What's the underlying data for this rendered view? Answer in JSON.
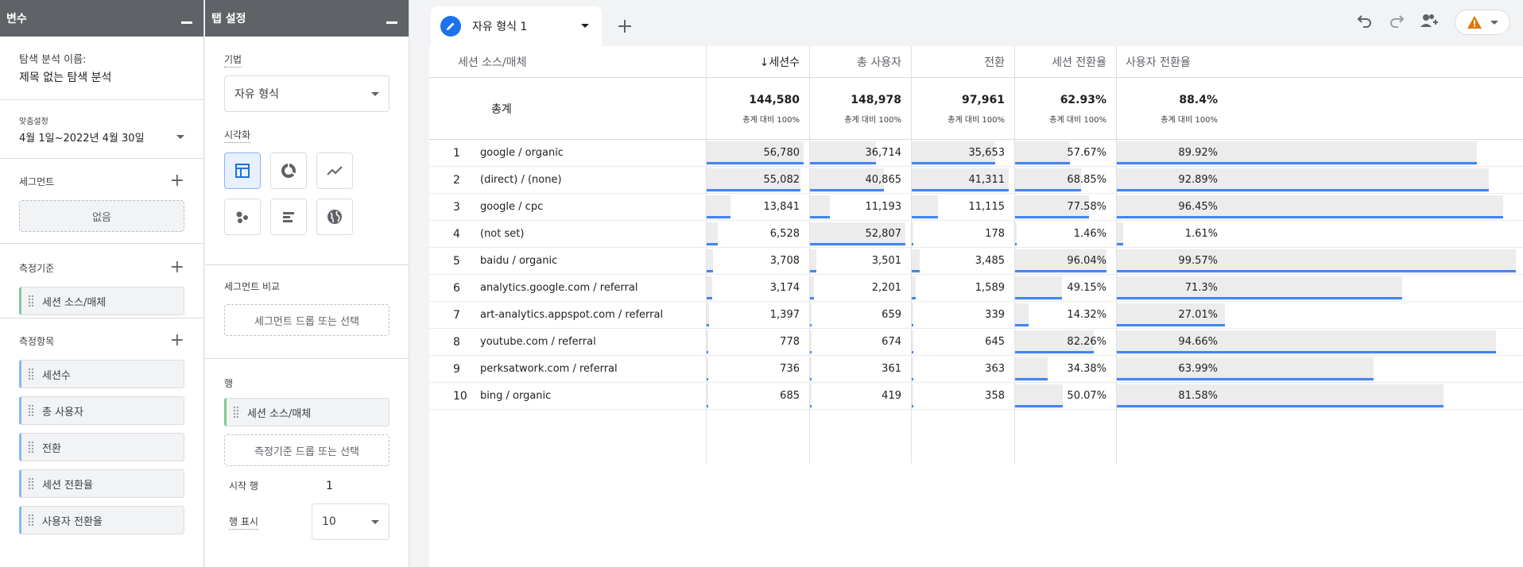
{
  "variables_panel": {
    "title": "변수",
    "exploration_name_label": "탐색 분석 이름:",
    "exploration_name": "제목 없는 탐색 분석",
    "date_label": "맞춤설정",
    "date_range": "4월 1일~2022년 4월 30일",
    "segments_label": "세그먼트",
    "segments_empty": "없음",
    "dimensions_label": "측정기준",
    "dimensions": [
      "세션 소스/매체"
    ],
    "metrics_label": "측정항목",
    "metrics": [
      "세션수",
      "총 사용자",
      "전환",
      "세션 전환율",
      "사용자 전환율"
    ]
  },
  "tab_settings_panel": {
    "title": "탭 설정",
    "technique_label": "기법",
    "technique_value": "자유 형식",
    "visualization_label": "시각화",
    "segment_compare_label": "세그먼트 비교",
    "segment_drop": "세그먼트 드롭 또는 선택",
    "rows_label": "행",
    "row_dimension": "세션 소스/매체",
    "dimension_drop": "측정기준 드롭 또는 선택",
    "start_row_label": "시작 행",
    "start_row_value": "1",
    "show_rows_label": "행 표시",
    "show_rows_value": "10"
  },
  "tab": {
    "name": "자유 형식 1"
  },
  "colors": {
    "accent": "#1a73e8",
    "bar_line": "#4285f4",
    "bar_fill": "#ececec",
    "header": "#5f6368"
  },
  "table": {
    "headers": [
      "세션 소스/매체",
      "↓세션수",
      "총 사용자",
      "전환",
      "세션 전환율",
      "사용자 전환율"
    ],
    "total_label": "총계",
    "totals": [
      "144,580",
      "148,978",
      "97,961",
      "62.93%",
      "88.4%"
    ],
    "total_sub": "총계 대비 100%",
    "rows": [
      {
        "idx": "1",
        "source": "google / organic",
        "sessions": "56,780",
        "users": "36,714",
        "conv": "35,653",
        "srate": "57.67%",
        "urate": "89.92%"
      },
      {
        "idx": "2",
        "source": "(direct) / (none)",
        "sessions": "55,082",
        "users": "40,865",
        "conv": "41,311",
        "srate": "68.85%",
        "urate": "92.89%"
      },
      {
        "idx": "3",
        "source": "google / cpc",
        "sessions": "13,841",
        "users": "11,193",
        "conv": "11,115",
        "srate": "77.58%",
        "urate": "96.45%"
      },
      {
        "idx": "4",
        "source": "(not set)",
        "sessions": "6,528",
        "users": "52,807",
        "conv": "178",
        "srate": "1.46%",
        "urate": "1.61%"
      },
      {
        "idx": "5",
        "source": "baidu / organic",
        "sessions": "3,708",
        "users": "3,501",
        "conv": "3,485",
        "srate": "96.04%",
        "urate": "99.57%"
      },
      {
        "idx": "6",
        "source": "analytics.google.com / referral",
        "sessions": "3,174",
        "users": "2,201",
        "conv": "1,589",
        "srate": "49.15%",
        "urate": "71.3%"
      },
      {
        "idx": "7",
        "source": "art-analytics.appspot.com / referral",
        "sessions": "1,397",
        "users": "659",
        "conv": "339",
        "srate": "14.32%",
        "urate": "27.01%"
      },
      {
        "idx": "8",
        "source": "youtube.com / referral",
        "sessions": "778",
        "users": "674",
        "conv": "645",
        "srate": "82.26%",
        "urate": "94.66%"
      },
      {
        "idx": "9",
        "source": "perksatwork.com / referral",
        "sessions": "736",
        "users": "361",
        "conv": "363",
        "srate": "34.38%",
        "urate": "63.99%"
      },
      {
        "idx": "10",
        "source": "bing / organic",
        "sessions": "685",
        "users": "419",
        "conv": "358",
        "srate": "50.07%",
        "urate": "81.58%"
      }
    ]
  }
}
